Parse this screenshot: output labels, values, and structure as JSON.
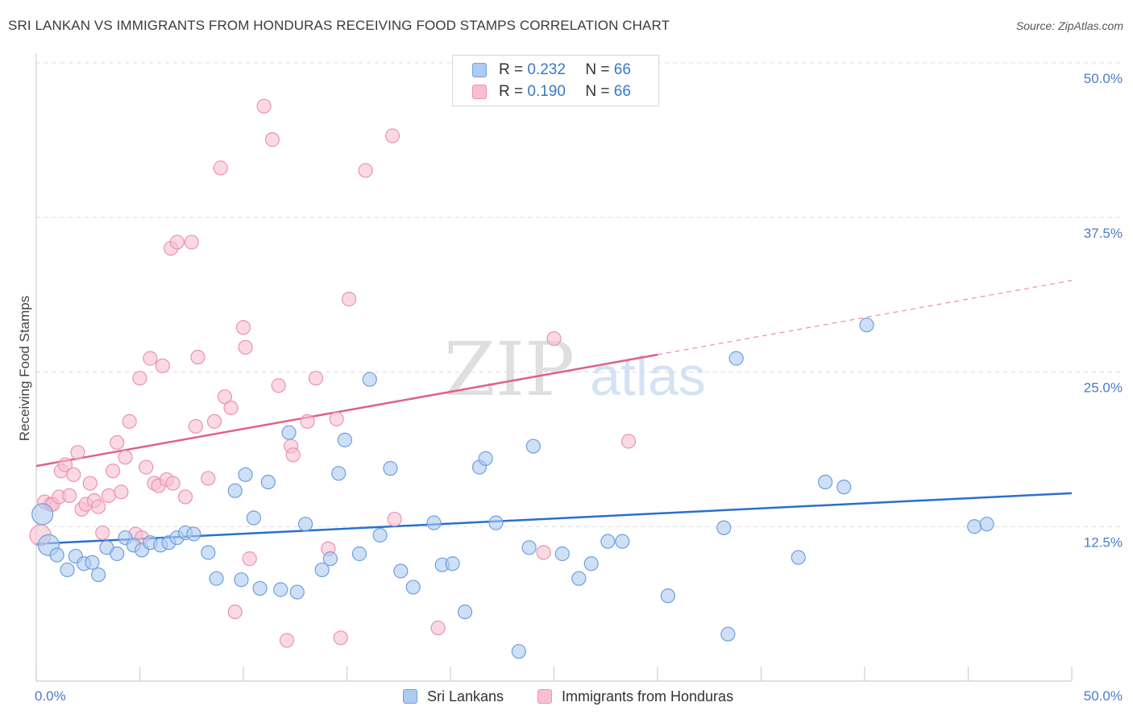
{
  "header": {
    "title": "SRI LANKAN VS IMMIGRANTS FROM HONDURAS RECEIVING FOOD STAMPS CORRELATION CHART",
    "source": "Source: ZipAtlas.com"
  },
  "watermark": {
    "zip": "ZIP",
    "atlas": "atlas"
  },
  "legend": {
    "rows": [
      {
        "r_label": "R =",
        "r_value": "0.232",
        "n_label": "N =",
        "n_value": "66"
      },
      {
        "r_label": "R =",
        "r_value": "0.190",
        "n_label": "N =",
        "n_value": "66"
      }
    ]
  },
  "colors": {
    "blue_fill": "#aecbf0",
    "blue_stroke": "#6f9fe0",
    "blue_line": "#2a6fcf",
    "pink_fill": "#f7c0d0",
    "pink_stroke": "#ec93b0",
    "pink_line": "#e0608a",
    "tick_text": "#4a7cc7",
    "grid": "#dddddd"
  },
  "chart_data": {
    "type": "scatter",
    "title": "SRI LANKAN VS IMMIGRANTS FROM HONDURAS RECEIVING FOOD STAMPS CORRELATION CHART",
    "xlabel": "",
    "ylabel": "Receiving Food Stamps",
    "xlim": [
      0,
      50
    ],
    "ylim": [
      0,
      50
    ],
    "x_tick_labels": [
      "0.0%",
      "50.0%"
    ],
    "y_ticks": [
      12.5,
      25,
      37.5,
      50
    ],
    "y_tick_labels": [
      "12.5%",
      "25.0%",
      "37.5%",
      "50.0%"
    ],
    "grid": true,
    "legend_position": "top-center",
    "series": [
      {
        "name": "Sri Lankans",
        "r": 0.232,
        "n": 66,
        "trend": {
          "x": [
            0,
            50
          ],
          "y": [
            11.1,
            15.2
          ],
          "dashed_from": null
        },
        "points": [
          [
            0.3,
            13.5
          ],
          [
            0.6,
            11.0
          ],
          [
            1.0,
            10.2
          ],
          [
            1.5,
            9.0
          ],
          [
            1.9,
            10.1
          ],
          [
            2.3,
            9.5
          ],
          [
            2.7,
            9.6
          ],
          [
            3.0,
            8.6
          ],
          [
            3.4,
            10.8
          ],
          [
            3.9,
            10.3
          ],
          [
            4.3,
            11.6
          ],
          [
            4.7,
            11.0
          ],
          [
            5.1,
            10.6
          ],
          [
            5.5,
            11.2
          ],
          [
            6.0,
            11.0
          ],
          [
            6.4,
            11.2
          ],
          [
            6.8,
            11.6
          ],
          [
            7.2,
            12.0
          ],
          [
            7.6,
            11.9
          ],
          [
            8.3,
            10.4
          ],
          [
            8.7,
            8.3
          ],
          [
            9.6,
            15.4
          ],
          [
            9.9,
            8.2
          ],
          [
            10.1,
            16.7
          ],
          [
            10.5,
            13.2
          ],
          [
            10.8,
            7.5
          ],
          [
            11.2,
            16.1
          ],
          [
            11.8,
            7.4
          ],
          [
            12.2,
            20.1
          ],
          [
            12.6,
            7.2
          ],
          [
            13.0,
            12.7
          ],
          [
            13.8,
            9.0
          ],
          [
            14.2,
            9.9
          ],
          [
            14.6,
            16.8
          ],
          [
            14.9,
            19.5
          ],
          [
            15.6,
            10.3
          ],
          [
            16.1,
            24.4
          ],
          [
            16.6,
            11.8
          ],
          [
            17.1,
            17.2
          ],
          [
            17.6,
            8.9
          ],
          [
            18.2,
            7.6
          ],
          [
            19.2,
            12.8
          ],
          [
            19.6,
            9.4
          ],
          [
            20.1,
            9.5
          ],
          [
            20.7,
            5.6
          ],
          [
            21.4,
            17.3
          ],
          [
            21.7,
            18.0
          ],
          [
            22.2,
            12.8
          ],
          [
            23.3,
            2.4
          ],
          [
            23.8,
            10.8
          ],
          [
            24.0,
            19.0
          ],
          [
            25.4,
            10.3
          ],
          [
            26.2,
            8.3
          ],
          [
            26.8,
            9.5
          ],
          [
            27.6,
            11.3
          ],
          [
            28.3,
            11.3
          ],
          [
            30.5,
            6.9
          ],
          [
            33.2,
            12.4
          ],
          [
            33.4,
            3.8
          ],
          [
            33.8,
            26.1
          ],
          [
            36.8,
            10.0
          ],
          [
            38.1,
            16.1
          ],
          [
            39.0,
            15.7
          ],
          [
            40.1,
            28.8
          ],
          [
            45.3,
            12.5
          ],
          [
            45.9,
            12.7
          ]
        ]
      },
      {
        "name": "Immigrants from Honduras",
        "r": 0.19,
        "n": 66,
        "trend": {
          "x": [
            0,
            50
          ],
          "y": [
            17.4,
            32.4
          ],
          "dashed_from": 30
        },
        "points": [
          [
            0.2,
            11.8
          ],
          [
            0.4,
            14.5
          ],
          [
            0.7,
            14.3
          ],
          [
            0.8,
            14.3
          ],
          [
            1.1,
            14.9
          ],
          [
            1.2,
            17.0
          ],
          [
            1.4,
            17.5
          ],
          [
            1.6,
            15.0
          ],
          [
            1.8,
            16.7
          ],
          [
            2.0,
            18.5
          ],
          [
            2.2,
            13.9
          ],
          [
            2.4,
            14.3
          ],
          [
            2.6,
            16.0
          ],
          [
            2.8,
            14.6
          ],
          [
            3.0,
            14.1
          ],
          [
            3.2,
            12.0
          ],
          [
            3.5,
            15.0
          ],
          [
            3.7,
            17.0
          ],
          [
            3.9,
            19.3
          ],
          [
            4.1,
            15.3
          ],
          [
            4.3,
            18.1
          ],
          [
            4.5,
            21.0
          ],
          [
            4.8,
            11.9
          ],
          [
            5.0,
            24.5
          ],
          [
            5.1,
            11.6
          ],
          [
            5.3,
            17.3
          ],
          [
            5.5,
            26.1
          ],
          [
            5.7,
            16.0
          ],
          [
            5.9,
            15.8
          ],
          [
            6.1,
            25.5
          ],
          [
            6.3,
            16.3
          ],
          [
            6.5,
            35.0
          ],
          [
            6.6,
            16.0
          ],
          [
            6.8,
            35.5
          ],
          [
            7.2,
            14.9
          ],
          [
            7.5,
            35.5
          ],
          [
            7.7,
            20.6
          ],
          [
            7.8,
            26.2
          ],
          [
            8.3,
            16.4
          ],
          [
            8.6,
            21.0
          ],
          [
            8.9,
            41.5
          ],
          [
            9.1,
            23.0
          ],
          [
            9.4,
            22.1
          ],
          [
            9.6,
            5.6
          ],
          [
            10.0,
            28.6
          ],
          [
            10.1,
            27.0
          ],
          [
            10.3,
            9.9
          ],
          [
            11.0,
            46.5
          ],
          [
            11.4,
            43.8
          ],
          [
            11.7,
            23.9
          ],
          [
            12.1,
            3.3
          ],
          [
            12.3,
            19.0
          ],
          [
            12.4,
            18.3
          ],
          [
            13.1,
            21.0
          ],
          [
            13.5,
            24.5
          ],
          [
            14.1,
            10.7
          ],
          [
            14.5,
            21.2
          ],
          [
            14.7,
            3.5
          ],
          [
            15.1,
            30.9
          ],
          [
            15.9,
            41.3
          ],
          [
            17.2,
            44.1
          ],
          [
            17.3,
            13.1
          ],
          [
            19.4,
            4.3
          ],
          [
            24.5,
            10.4
          ],
          [
            25.0,
            27.7
          ],
          [
            28.6,
            19.4
          ]
        ]
      }
    ]
  },
  "bottom_legend": [
    "Sri Lankans",
    "Immigrants from Honduras"
  ]
}
